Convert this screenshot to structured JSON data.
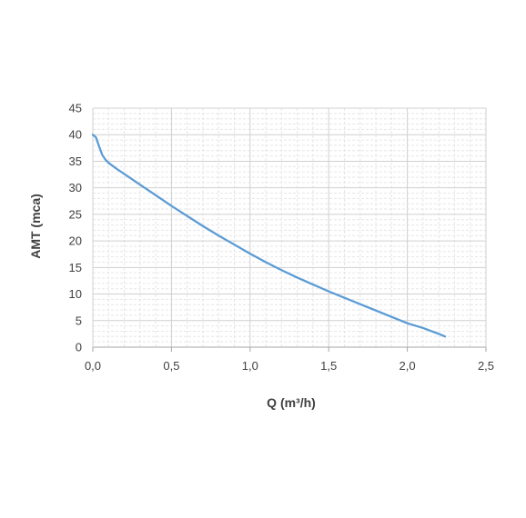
{
  "chart_data": {
    "type": "line",
    "title": "",
    "xlabel": "Q (m³/h)",
    "ylabel": "AMT (mca)",
    "xlim": [
      0,
      2.5
    ],
    "ylim": [
      0,
      45
    ],
    "x_ticks": [
      "0,0",
      "0,5",
      "1,0",
      "1,5",
      "2,0",
      "2,5"
    ],
    "y_ticks": [
      "0",
      "5",
      "10",
      "15",
      "20",
      "25",
      "30",
      "35",
      "40",
      "45"
    ],
    "grid": true,
    "legend": "none",
    "series": [
      {
        "color": "#5B9BD5",
        "x": [
          0.0,
          0.02,
          0.04,
          0.06,
          0.08,
          0.1,
          0.15,
          0.2,
          0.3,
          0.4,
          0.5,
          0.6,
          0.7,
          0.8,
          0.9,
          1.0,
          1.1,
          1.2,
          1.3,
          1.4,
          1.5,
          1.6,
          1.7,
          1.8,
          1.9,
          2.0,
          2.1,
          2.2,
          2.24
        ],
        "y": [
          40.0,
          39.5,
          37.8,
          36.2,
          35.3,
          34.7,
          33.6,
          32.6,
          30.6,
          28.6,
          26.6,
          24.7,
          22.8,
          21.0,
          19.3,
          17.6,
          16.0,
          14.5,
          13.1,
          11.8,
          10.5,
          9.3,
          8.1,
          6.9,
          5.7,
          4.5,
          3.6,
          2.5,
          2.0
        ]
      }
    ]
  }
}
